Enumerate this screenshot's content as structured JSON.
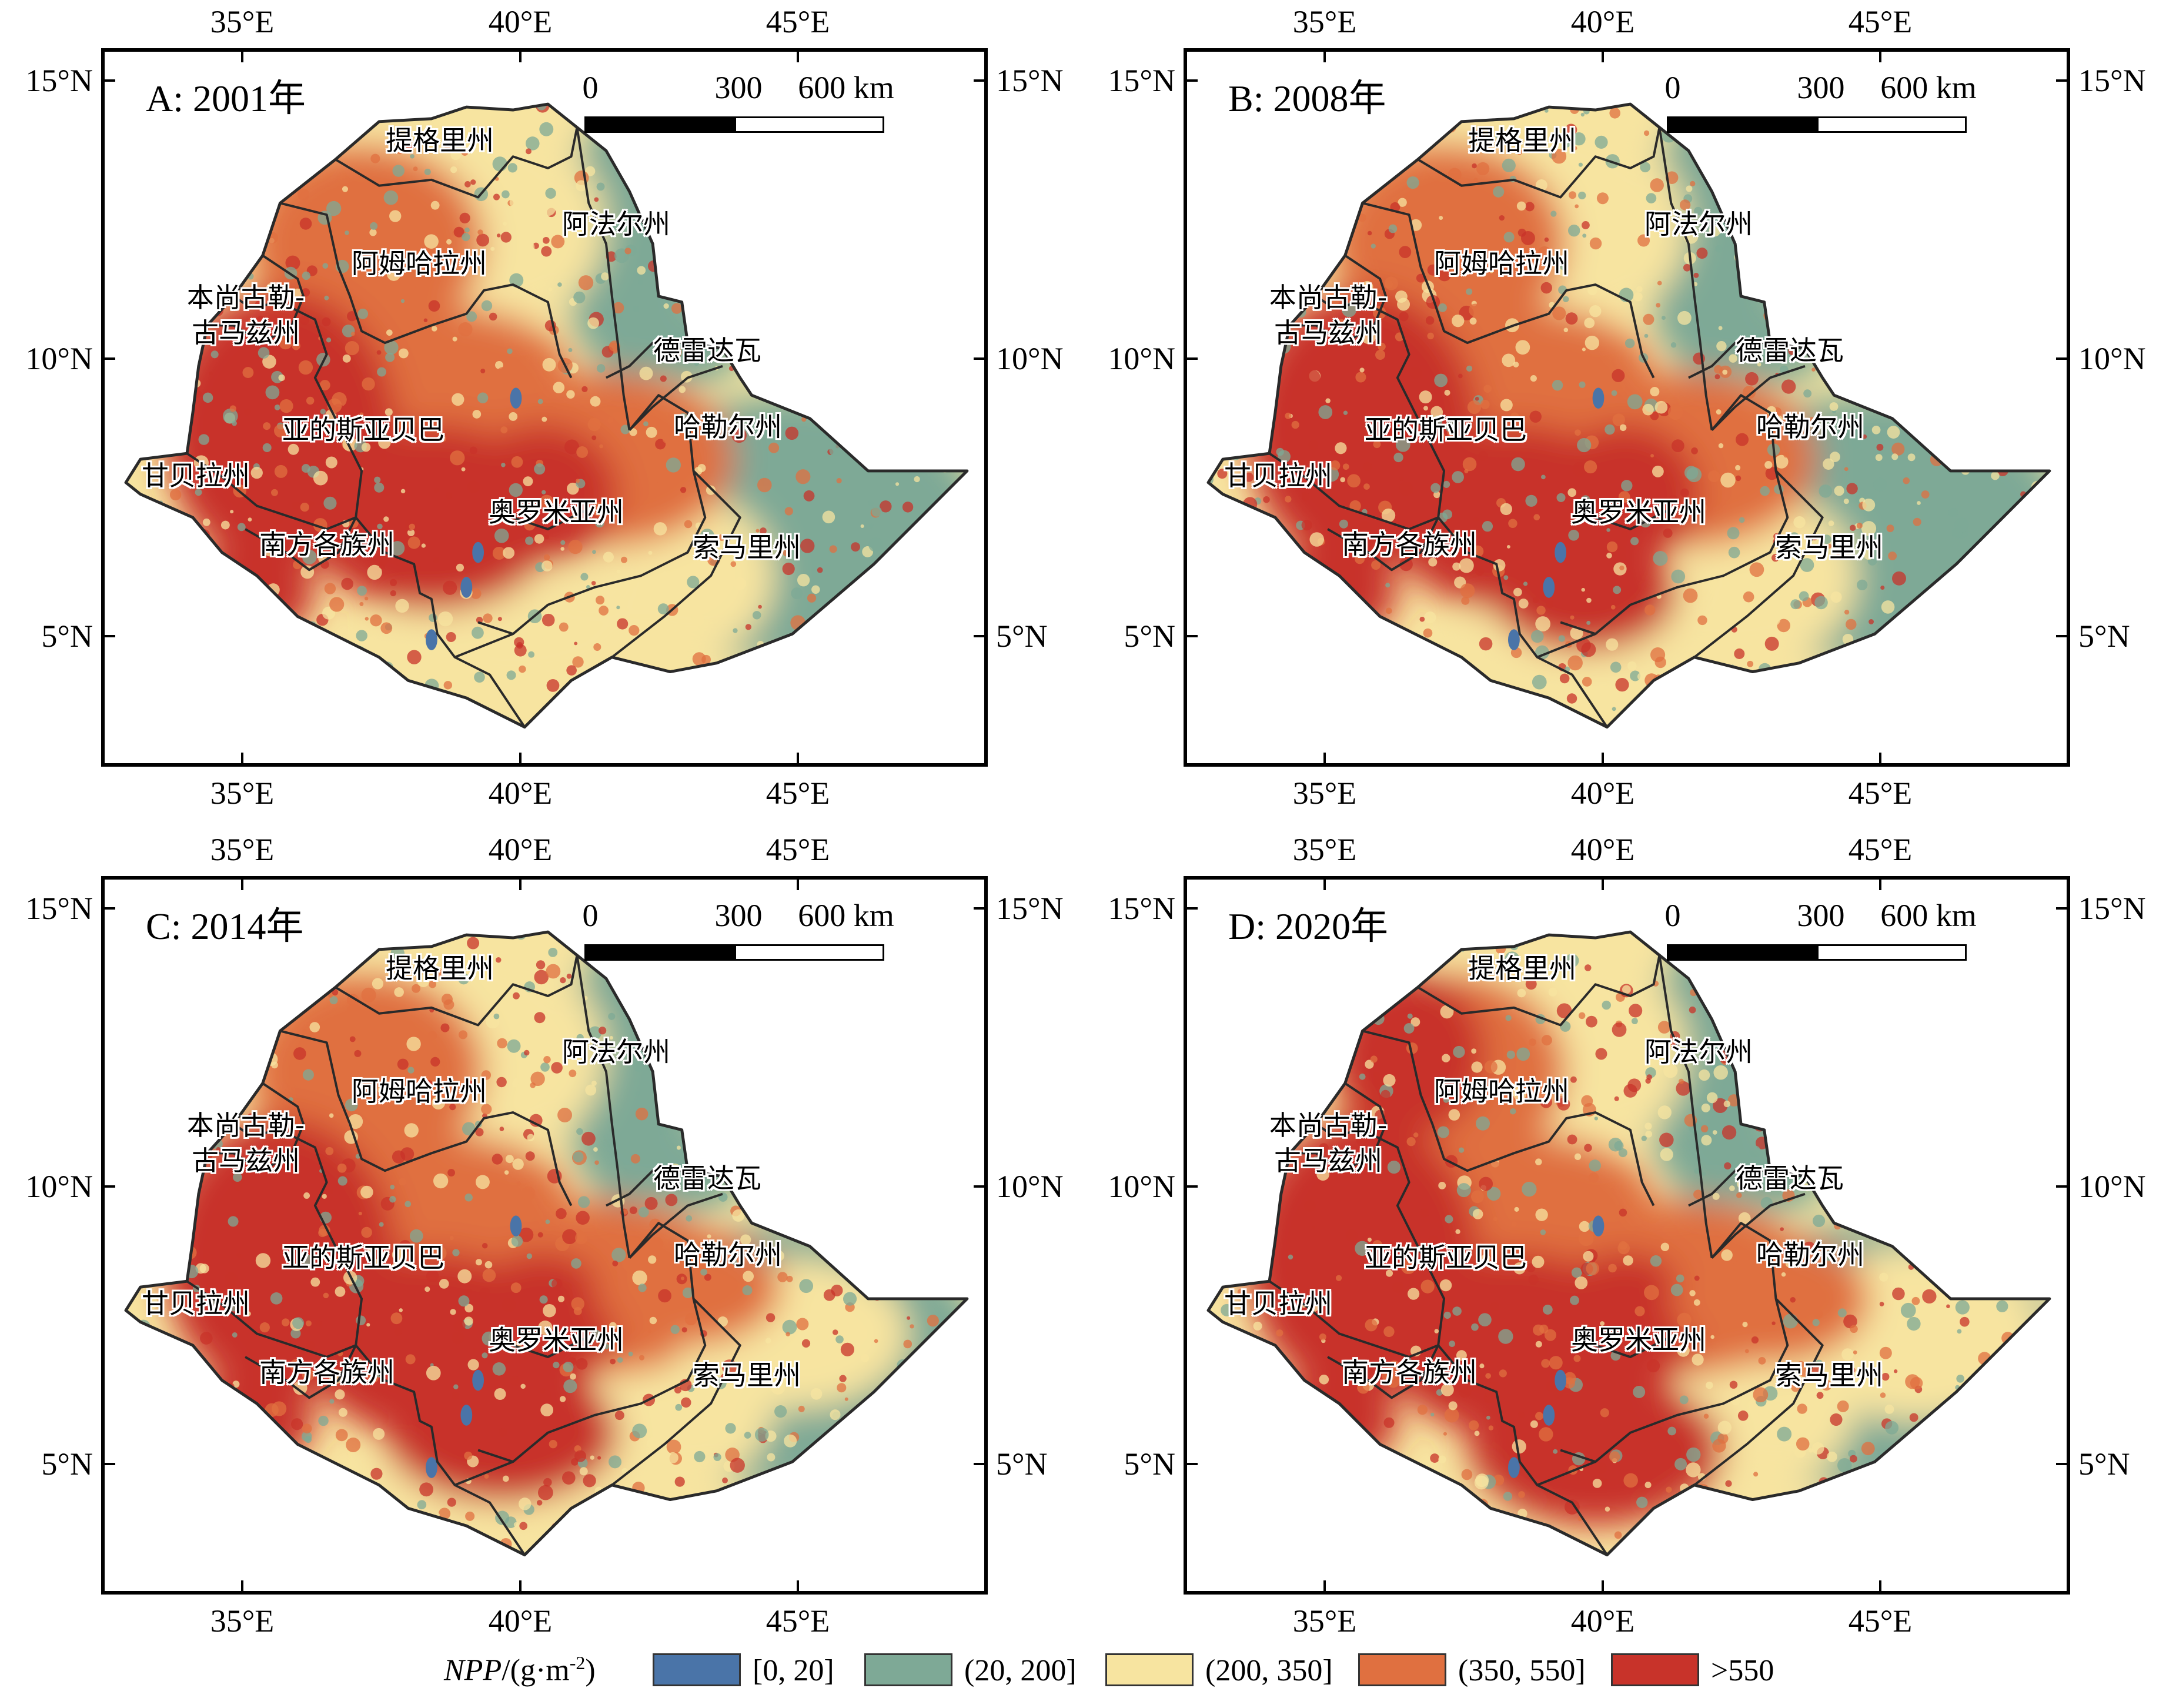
{
  "colors": {
    "class_0_20": "#4a74a8",
    "class_20_200": "#7ea996",
    "class_200_350": "#f7e4a0",
    "class_350_550": "#e07040",
    "class_gt550": "#c8332a",
    "border": "#2a2a2a"
  },
  "axes": {
    "x_ticks": [
      "35°E",
      "40°E",
      "45°E"
    ],
    "y_ticks": [
      "15°N",
      "10°N",
      "5°N"
    ]
  },
  "scalebar": {
    "labels": [
      "0",
      "300",
      "600 km"
    ]
  },
  "regions": {
    "tigray": "提格里州",
    "afar": "阿法尔州",
    "amhara": "阿姆哈拉州",
    "benishangul_1": "本尚古勒-",
    "benishangul_2": "古马兹州",
    "dire_dawa": "德雷达瓦",
    "addis_ababa": "亚的斯亚贝巴",
    "harari": "哈勒尔州",
    "gambela": "甘贝拉州",
    "oromia": "奥罗米亚州",
    "snnpr": "南方各族州",
    "somali": "索马里州"
  },
  "panels": [
    {
      "id": "A",
      "title": "A: 2001年"
    },
    {
      "id": "B",
      "title": "B: 2008年"
    },
    {
      "id": "C",
      "title": "C: 2014年"
    },
    {
      "id": "D",
      "title": "D: 2020年"
    }
  ],
  "legend": {
    "title_var": "NPP",
    "title_unit": "/(g·m",
    "title_exp": "-2",
    "title_close": ")",
    "items": [
      {
        "label": "[0, 20]",
        "color": "#4a74a8"
      },
      {
        "label": "(20, 200]",
        "color": "#7ea996"
      },
      {
        "label": "(200, 350]",
        "color": "#f7e4a0"
      },
      {
        "label": "(350, 550]",
        "color": "#e07040"
      },
      {
        "label": ">550",
        "color": "#c8332a"
      }
    ]
  }
}
